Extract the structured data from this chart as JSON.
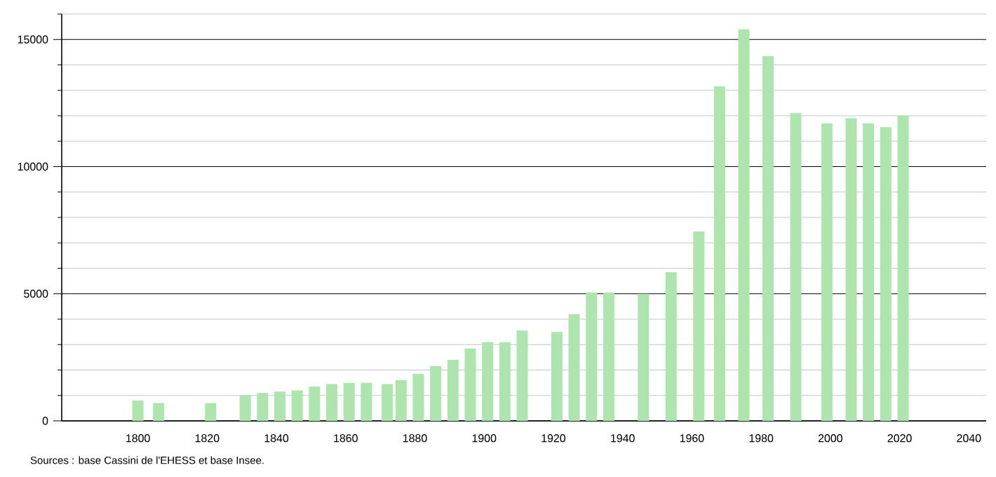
{
  "chart_data": {
    "type": "bar",
    "x": [
      1800,
      1806,
      1821,
      1831,
      1836,
      1841,
      1846,
      1851,
      1856,
      1861,
      1866,
      1872,
      1876,
      1881,
      1886,
      1891,
      1896,
      1901,
      1906,
      1911,
      1921,
      1926,
      1931,
      1936,
      1946,
      1954,
      1962,
      1968,
      1975,
      1982,
      1990,
      1999,
      2006,
      2011,
      2016,
      2021
    ],
    "values": [
      800,
      700,
      700,
      1000,
      1100,
      1150,
      1200,
      1350,
      1450,
      1500,
      1500,
      1450,
      1600,
      1850,
      2150,
      2400,
      2850,
      3100,
      3100,
      3550,
      3500,
      4200,
      5050,
      5050,
      5000,
      5850,
      7450,
      13150,
      15400,
      14350,
      12100,
      11700,
      11900,
      11700,
      11550,
      12000
    ],
    "color": "#aee5ae",
    "xlim": [
      1778,
      2045
    ],
    "xticks": [
      1800,
      1820,
      1840,
      1860,
      1880,
      1900,
      1920,
      1940,
      1960,
      1980,
      2000,
      2020,
      2040
    ],
    "ylim": [
      0,
      16000
    ],
    "yticks": [
      0,
      {
        "value": 1000,
        "label": null
      },
      {
        "value": 2000,
        "label": null
      },
      {
        "value": 3000,
        "label": null
      },
      {
        "value": 4000,
        "label": null
      },
      5000,
      {
        "value": 6000,
        "label": null
      },
      {
        "value": 7000,
        "label": null
      },
      {
        "value": 8000,
        "label": null
      },
      {
        "value": 9000,
        "label": null
      },
      10000,
      {
        "value": 11000,
        "label": null
      },
      {
        "value": 12000,
        "label": null
      },
      {
        "value": 13000,
        "label": null
      },
      {
        "value": 14000,
        "label": null
      },
      15000,
      {
        "value": 16000,
        "label": null
      }
    ],
    "grid": "y",
    "annotations": [
      "Sources : base Cassini de l'EHESS et base Insee."
    ]
  }
}
